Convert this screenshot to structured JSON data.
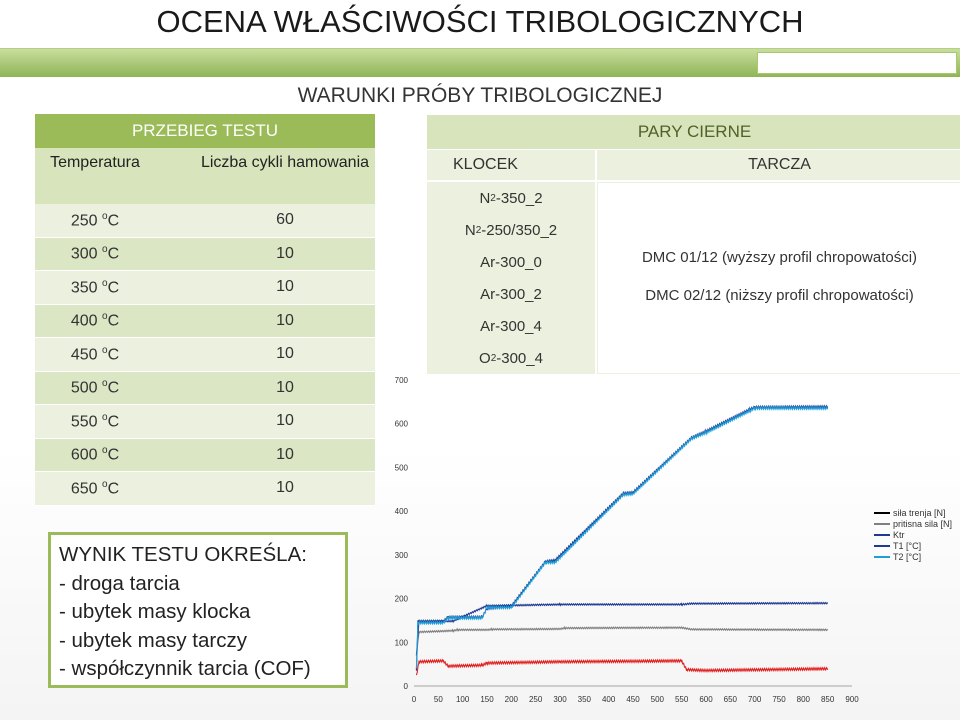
{
  "title": "OCENA WŁAŚCIWOŚCI TRIBOLOGICZNYCH",
  "subtitle": "WARUNKI PRÓBY TRIBOLOGICZNEJ",
  "left_table": {
    "header": "PRZEBIEG TESTU",
    "col1": "Temperatura",
    "col2": "Liczba cykli hamowania",
    "unit": "C",
    "deg": "o",
    "rows": [
      {
        "temp": "250",
        "cycles": "60"
      },
      {
        "temp": "300",
        "cycles": "10"
      },
      {
        "temp": "350",
        "cycles": "10"
      },
      {
        "temp": "400",
        "cycles": "10"
      },
      {
        "temp": "450",
        "cycles": "10"
      },
      {
        "temp": "500",
        "cycles": "10"
      },
      {
        "temp": "550",
        "cycles": "10"
      },
      {
        "temp": "600",
        "cycles": "10"
      },
      {
        "temp": "650",
        "cycles": "10"
      }
    ]
  },
  "right_table": {
    "header": "PARY CIERNE",
    "col_klocek": "KLOCEK",
    "col_tarcza": "TARCZA",
    "klocek": [
      {
        "pre": "N",
        "sub": "2",
        "post": " -350_2"
      },
      {
        "pre": "N",
        "sub": "2",
        "post": " -250/350_2"
      },
      {
        "pre": "Ar-300_0",
        "sub": "",
        "post": ""
      },
      {
        "pre": "Ar-300_2",
        "sub": "",
        "post": ""
      },
      {
        "pre": "Ar-300_4",
        "sub": "",
        "post": ""
      },
      {
        "pre": "O",
        "sub": "2",
        "post": " -300_4"
      }
    ],
    "tarcza": [
      "DMC 01/12 (wyższy profil chropowatości)",
      "DMC 02/12 (niższy profil chropowatości)"
    ]
  },
  "result_box": {
    "heading": "WYNIK TESTU OKREŚLA:",
    "items": [
      "- droga tarcia",
      "- ubytek masy klocka",
      "- ubytek masy tarczy",
      "- współczynnik tarcia (COF)"
    ]
  },
  "chart_data": {
    "type": "line",
    "title": "",
    "xlabel": "",
    "ylabel": "",
    "xlim": [
      0,
      900
    ],
    "ylim": [
      0,
      700
    ],
    "x_ticks": [
      0,
      50,
      100,
      150,
      200,
      250,
      300,
      350,
      400,
      450,
      500,
      550,
      600,
      650,
      700,
      750,
      800,
      850,
      900
    ],
    "y_ticks": [
      0,
      100,
      200,
      300,
      400,
      500,
      600,
      700
    ],
    "legend_position": "right",
    "series": [
      {
        "name": "siła trenja [N]",
        "color": "#000000",
        "points": []
      },
      {
        "name": "pritisna sila [N]",
        "color": "#808080",
        "points": [
          [
            5,
            70
          ],
          [
            10,
            125
          ],
          [
            80,
            128
          ],
          [
            90,
            130
          ],
          [
            150,
            130
          ],
          [
            160,
            131
          ],
          [
            300,
            132
          ],
          [
            310,
            134
          ],
          [
            550,
            135
          ],
          [
            570,
            131
          ],
          [
            850,
            130
          ]
        ]
      },
      {
        "name": "Ktr",
        "color": "#1f3a93",
        "points": [
          [
            5,
            70
          ],
          [
            10,
            148
          ],
          [
            80,
            150
          ],
          [
            150,
            185
          ],
          [
            300,
            188
          ],
          [
            550,
            188
          ],
          [
            570,
            190
          ],
          [
            850,
            191
          ]
        ]
      },
      {
        "name": "T1 [°C]",
        "color": "#1f3a93",
        "points": [
          [
            5,
            35
          ],
          [
            8,
            150
          ],
          [
            60,
            150
          ],
          [
            70,
            160
          ],
          [
            140,
            160
          ],
          [
            150,
            180
          ],
          [
            200,
            185
          ],
          [
            270,
            287
          ],
          [
            290,
            290
          ],
          [
            430,
            443
          ],
          [
            450,
            445
          ],
          [
            570,
            570
          ],
          [
            600,
            585
          ],
          [
            690,
            635
          ],
          [
            700,
            640
          ],
          [
            850,
            641
          ]
        ]
      },
      {
        "name": "T2 [°C]",
        "color": "#1f9fd8",
        "points": [
          [
            5,
            40
          ],
          [
            8,
            147
          ],
          [
            60,
            147
          ],
          [
            70,
            158
          ],
          [
            140,
            158
          ],
          [
            150,
            182
          ],
          [
            200,
            182
          ],
          [
            270,
            285
          ],
          [
            290,
            285
          ],
          [
            430,
            440
          ],
          [
            450,
            442
          ],
          [
            570,
            568
          ],
          [
            600,
            582
          ],
          [
            690,
            632
          ],
          [
            700,
            638
          ],
          [
            850,
            638
          ]
        ]
      },
      {
        "name": "",
        "color": "#e02020",
        "points": [
          [
            5,
            25
          ],
          [
            10,
            58
          ],
          [
            60,
            60
          ],
          [
            70,
            48
          ],
          [
            140,
            50
          ],
          [
            150,
            55
          ],
          [
            300,
            58
          ],
          [
            550,
            60
          ],
          [
            560,
            40
          ],
          [
            600,
            38
          ],
          [
            850,
            42
          ]
        ]
      }
    ]
  }
}
